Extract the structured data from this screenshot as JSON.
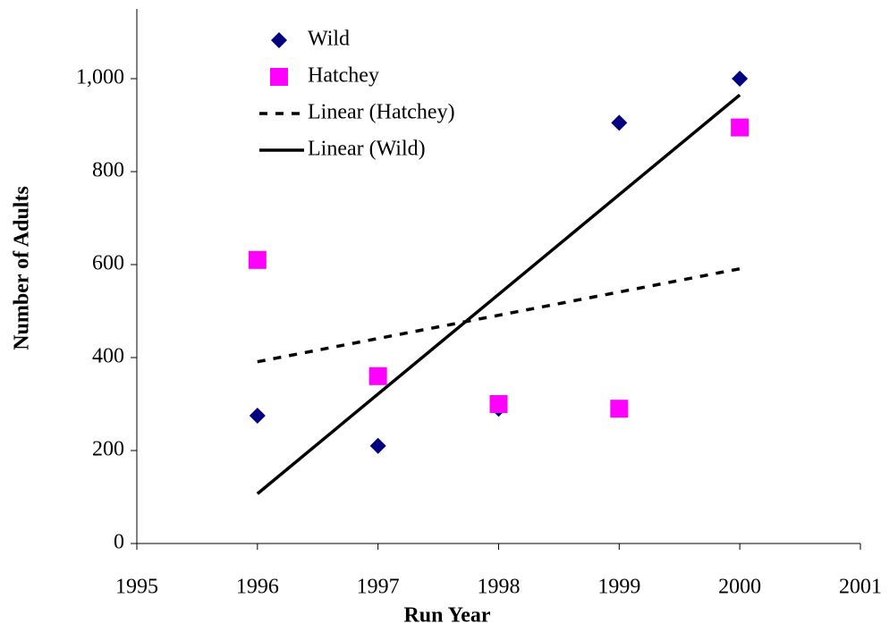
{
  "chart_data": {
    "type": "scatter",
    "x_label": "Run Year",
    "y_label": "Number of Adults",
    "x": [
      1996,
      1997,
      1998,
      1999,
      2000
    ],
    "series": [
      {
        "name": "Wild",
        "color": "#000080",
        "marker": "diamond",
        "values": [
          275,
          210,
          290,
          905,
          1000
        ]
      },
      {
        "name": "Hatchey",
        "color": "#ff00ff",
        "marker": "square",
        "values": [
          610,
          360,
          300,
          290,
          895
        ]
      }
    ],
    "trendlines": [
      {
        "name": "Linear (Hatchey)",
        "series": 1,
        "dashed": true,
        "color": "#000000"
      },
      {
        "name": "Linear (Wild)",
        "series": 0,
        "dashed": false,
        "color": "#000000"
      }
    ],
    "xlim": [
      1995,
      2001
    ],
    "xticks": [
      1995,
      1996,
      1997,
      1998,
      1999,
      2000,
      2001
    ],
    "ylim": [
      0,
      1150
    ],
    "yticks": [
      0,
      200,
      400,
      600,
      800,
      {
        "value": 1000,
        "label": "1,000"
      }
    ],
    "grid": false
  }
}
